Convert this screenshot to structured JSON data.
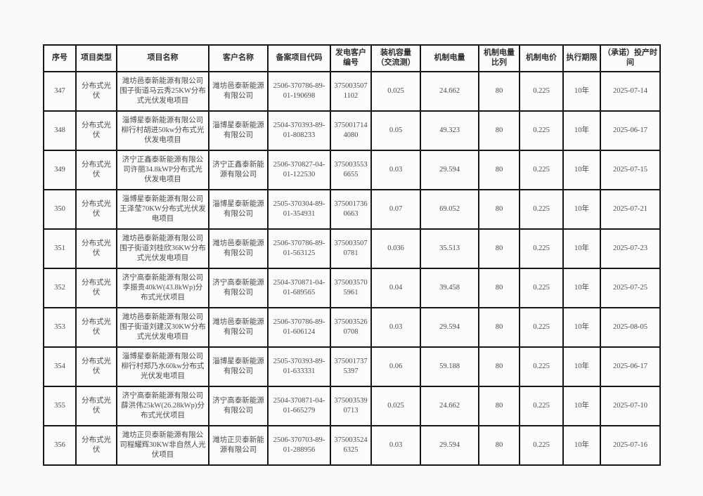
{
  "page": {
    "background": "#fafafa",
    "border_color": "#161616",
    "text_color": "#4a4a4a"
  },
  "table": {
    "headers": [
      "序号",
      "项目类型",
      "项目名称",
      "客户名称",
      "备案项目代码",
      "发电客户编号",
      "装机容量（交流测）",
      "机制电量",
      "机制电量比列",
      "机制电价",
      "执行期限",
      "（承诺）投产时间"
    ],
    "rows": [
      [
        "347",
        "分布式光伏",
        "潍坊邑泰新能源有限公司围子街道马云秀25KW分布式光伏发电项目",
        "潍坊邑泰新能源有限公司",
        "2506-370786-89-01-190698",
        "3750035071102",
        "0.025",
        "24.662",
        "80",
        "0.225",
        "10年",
        "2025-07-14"
      ],
      [
        "348",
        "分布式光伏",
        "淄博星泰新能源有限公司柳行村胡进50kw分布式光伏发电项目",
        "淄博星泰新能源有限公司",
        "2504-370393-89-01-808233",
        "3750017144080",
        "0.05",
        "49.323",
        "80",
        "0.225",
        "10年",
        "2025-06-17"
      ],
      [
        "349",
        "分布式光伏",
        "济宁正鑫泰新能源有限公司许丽34.8kWP分布式光伏发电项目",
        "济宁正鑫泰新能源有限公司",
        "2506-370827-04-01-122530",
        "3750035536655",
        "0.03",
        "29.594",
        "80",
        "0.225",
        "10年",
        "2025-07-15"
      ],
      [
        "350",
        "分布式光伏",
        "淄博星泰新能源有限公司王泽莹70KW分布式光伏发电项目",
        "淄博星泰新能源有限公司",
        "2505-370304-89-01-354931",
        "3750017360663",
        "0.07",
        "69.052",
        "80",
        "0.225",
        "10年",
        "2025-07-21"
      ],
      [
        "351",
        "分布式光伏",
        "潍坊邑泰新能源有限公司围子街道刘桂欣36KW分布式光伏发电项目",
        "潍坊邑泰新能源有限公司",
        "2506-370786-89-01-563125",
        "3750035070781",
        "0.036",
        "35.513",
        "80",
        "0.225",
        "10年",
        "2025-07-23"
      ],
      [
        "352",
        "分布式光伏",
        "济宁高泰新能源有限公司李振贵40kW(43.8kWp)分布式光伏项目",
        "济宁高泰新能源有限公司",
        "2504-370871-04-01-689565",
        "3750035705961",
        "0.04",
        "39.458",
        "80",
        "0.225",
        "10年",
        "2025-07-25"
      ],
      [
        "353",
        "分布式光伏",
        "潍坊邑泰新能源有限公司围子街道刘建汉30KW分布式光伏发电项目",
        "潍坊邑泰新能源有限公司",
        "2506-370786-89-01-606124",
        "3750035260708",
        "0.03",
        "29.594",
        "80",
        "0.225",
        "10年",
        "2025-08-05"
      ],
      [
        "354",
        "分布式光伏",
        "淄博星泰新能源有限公司柳行村郑乃水60kw分布式光伏发电项目",
        "淄博星泰新能源有限公司",
        "2505-370393-89-01-633331",
        "3750017375397",
        "0.06",
        "59.188",
        "80",
        "0.225",
        "10年",
        "2025-06-17"
      ],
      [
        "355",
        "分布式光伏",
        "济宁高泰新能源有限公司薛洪伟25kW(26.28kWp)分布式光伏项目",
        "济宁高泰新能源有限公司",
        "2504-370871-04-01-665279",
        "3750035390713",
        "0.025",
        "24.662",
        "80",
        "0.225",
        "10年",
        "2025-07-10"
      ],
      [
        "356",
        "分布式光伏",
        "潍坊正贝泰新能源有限公司程耀辉30KW非自然人光伏项目",
        "潍坊正贝泰新能源有限公司",
        "2506-370703-89-01-288956",
        "3750035246325",
        "0.03",
        "29.594",
        "80",
        "0.225",
        "10年",
        "2025-07-16"
      ]
    ]
  }
}
